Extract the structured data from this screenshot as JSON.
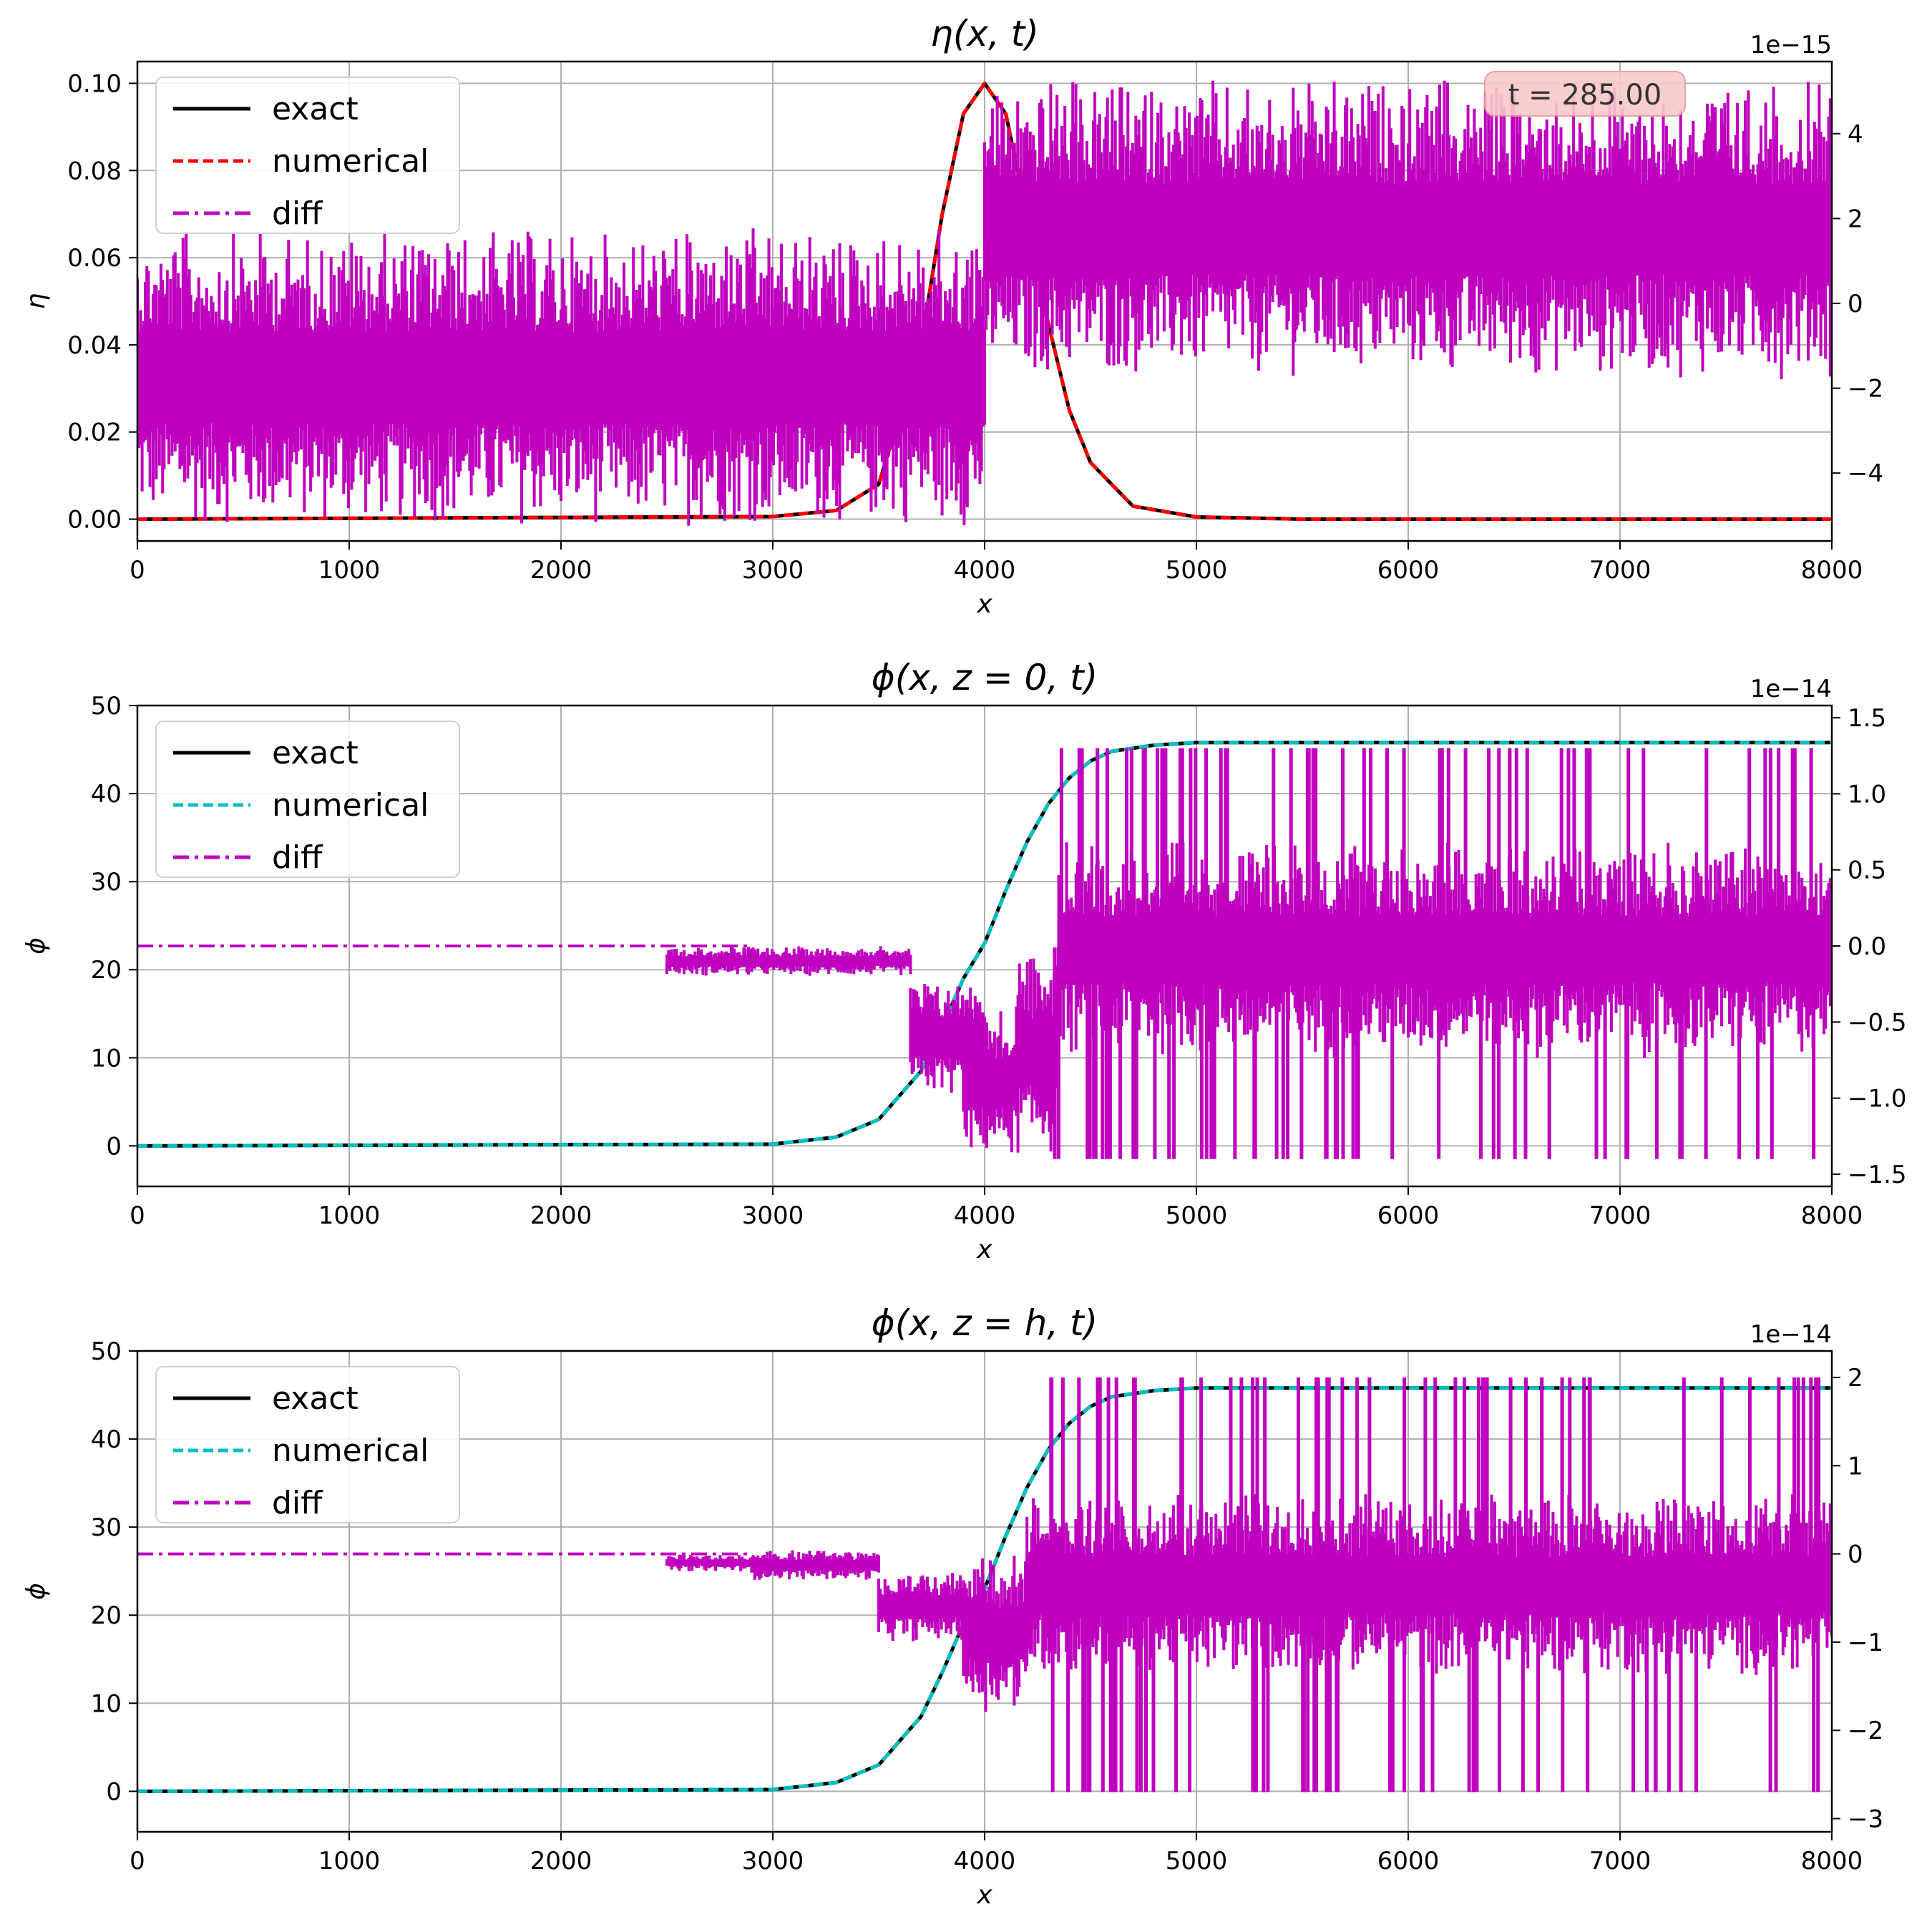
{
  "chart_data": [
    {
      "type": "line",
      "title": "η(x, t)",
      "xlabel": "x",
      "ylabel": "η",
      "xlim": [
        0,
        8000
      ],
      "ylim": [
        -0.005,
        0.105
      ],
      "xticks": [
        0,
        1000,
        2000,
        3000,
        4000,
        5000,
        6000,
        7000,
        8000
      ],
      "yticks": [
        0.0,
        0.02,
        0.04,
        0.06,
        0.08,
        0.1
      ],
      "ytick_labels": [
        "0.00",
        "0.02",
        "0.04",
        "0.06",
        "0.08",
        "0.10"
      ],
      "y2lim": [
        -5.6,
        5.7
      ],
      "y2ticks": [
        -4,
        -2,
        0,
        2,
        4
      ],
      "y2tick_labels": [
        "−4",
        "−2",
        "0",
        "2",
        "4"
      ],
      "y2_offset_label": "1e−15",
      "grid": true,
      "legend_position": "upper-left",
      "annotation": "t = 285.00",
      "series": [
        {
          "name": "exact",
          "style": "solid",
          "color": "#000000",
          "axis": "left",
          "x": [
            0,
            3000,
            3300,
            3500,
            3700,
            3800,
            3900,
            4000,
            4100,
            4200,
            4300,
            4400,
            4500,
            4700,
            5000,
            5500,
            8000
          ],
          "y": [
            0.0,
            0.0006,
            0.002,
            0.008,
            0.04,
            0.07,
            0.093,
            0.1,
            0.093,
            0.07,
            0.045,
            0.025,
            0.013,
            0.003,
            0.0005,
            0.0,
            0.0
          ]
        },
        {
          "name": "numerical",
          "style": "dashed",
          "color": "#ff0000",
          "axis": "left",
          "x": [
            0,
            3000,
            3300,
            3500,
            3700,
            3800,
            3900,
            4000,
            4100,
            4200,
            4300,
            4400,
            4500,
            4700,
            5000,
            5500,
            8000
          ],
          "y": [
            0.0,
            0.0006,
            0.002,
            0.008,
            0.04,
            0.07,
            0.093,
            0.1,
            0.093,
            0.07,
            0.045,
            0.025,
            0.013,
            0.003,
            0.0005,
            0.0,
            0.0
          ]
        },
        {
          "name": "diff",
          "style": "dashdot",
          "color": "#bf00bf",
          "axis": "right",
          "bands": [
            {
              "x": [
                0,
                4000
              ],
              "y": [
                -5.3,
                1.8
              ]
            },
            {
              "x": [
                4000,
                8000
              ],
              "y": [
                -1.8,
                5.3
              ]
            }
          ]
        }
      ]
    },
    {
      "type": "line",
      "title": "ϕ(x, z = 0, t)",
      "xlabel": "x",
      "ylabel": "ϕ",
      "xlim": [
        0,
        8000
      ],
      "ylim": [
        -4.6,
        50.0
      ],
      "xticks": [
        0,
        1000,
        2000,
        3000,
        4000,
        5000,
        6000,
        7000,
        8000
      ],
      "yticks": [
        0,
        10,
        20,
        30,
        40,
        50
      ],
      "ytick_labels": [
        "0",
        "10",
        "20",
        "30",
        "40",
        "50"
      ],
      "y2lim": [
        -1.58,
        1.58
      ],
      "y2ticks": [
        -1.5,
        -1.0,
        -0.5,
        0.0,
        0.5,
        1.0,
        1.5
      ],
      "y2tick_labels": [
        "−1.5",
        "−1.0",
        "−0.5",
        "0.0",
        "0.5",
        "1.0",
        "1.5"
      ],
      "y2_offset_label": "1e−14",
      "grid": true,
      "legend_position": "upper-left",
      "series": [
        {
          "name": "exact",
          "style": "solid",
          "color": "#000000",
          "axis": "left",
          "x": [
            0,
            3000,
            3300,
            3500,
            3700,
            3800,
            3900,
            4000,
            4100,
            4200,
            4300,
            4400,
            4500,
            4600,
            4800,
            5000,
            8000
          ],
          "y": [
            0.0,
            0.2,
            1.0,
            3.0,
            8.5,
            13.5,
            19.0,
            23.0,
            29.0,
            34.5,
            38.8,
            41.8,
            43.7,
            44.8,
            45.5,
            45.8,
            45.8
          ]
        },
        {
          "name": "numerical",
          "style": "dashed",
          "color": "#00bfbf",
          "axis": "left",
          "x": [
            0,
            3000,
            3300,
            3500,
            3700,
            3800,
            3900,
            4000,
            4100,
            4200,
            4300,
            4400,
            4500,
            4600,
            4800,
            5000,
            8000
          ],
          "y": [
            0.0,
            0.2,
            1.0,
            3.0,
            8.5,
            13.5,
            19.0,
            23.0,
            29.0,
            34.5,
            38.8,
            41.8,
            43.7,
            44.8,
            45.5,
            45.8,
            45.8
          ]
        },
        {
          "name": "diff",
          "style": "dashdot",
          "color": "#bf00bf",
          "axis": "right",
          "baseline": {
            "x": [
              0,
              2900
            ],
            "y": 0.0
          },
          "steps": [
            {
              "x": [
                2500,
                2900
              ],
              "y": [
                -0.2,
                0.0
              ]
            },
            {
              "x": [
                2900,
                3650
              ],
              "y": [
                -0.2,
                0.0
              ]
            },
            {
              "x": [
                3650,
                4000
              ],
              "y": [
                -1.0,
                -0.2
              ]
            },
            {
              "x": [
                3900,
                4150
              ],
              "y": [
                -1.4,
                -0.4
              ]
            },
            {
              "x": [
                4150,
                4350
              ],
              "y": [
                -1.4,
                0.0
              ]
            },
            {
              "x": [
                4350,
                8000
              ],
              "y": [
                -0.75,
                0.7
              ]
            }
          ],
          "spikes": {
            "x_range": [
              4300,
              8000
            ],
            "low": -1.4,
            "high": 1.3
          }
        }
      ]
    },
    {
      "type": "line",
      "title": "ϕ(x, z = h, t)",
      "xlabel": "x",
      "ylabel": "ϕ",
      "xlim": [
        0,
        8000
      ],
      "ylim": [
        -4.6,
        50.0
      ],
      "xticks": [
        0,
        1000,
        2000,
        3000,
        4000,
        5000,
        6000,
        7000,
        8000
      ],
      "yticks": [
        0,
        10,
        20,
        30,
        40,
        50
      ],
      "ytick_labels": [
        "0",
        "10",
        "20",
        "30",
        "40",
        "50"
      ],
      "y2lim": [
        -3.15,
        2.3
      ],
      "y2ticks": [
        -3,
        -2,
        -1,
        0,
        1,
        2
      ],
      "y2tick_labels": [
        "−3",
        "−2",
        "−1",
        "0",
        "1",
        "2"
      ],
      "y2_offset_label": "1e−14",
      "grid": true,
      "legend_position": "upper-left",
      "series": [
        {
          "name": "exact",
          "style": "solid",
          "color": "#000000",
          "axis": "left",
          "x": [
            0,
            3000,
            3300,
            3500,
            3700,
            3800,
            3900,
            4000,
            4100,
            4200,
            4300,
            4400,
            4500,
            4600,
            4800,
            5000,
            8000
          ],
          "y": [
            0.0,
            0.2,
            1.0,
            3.0,
            8.5,
            13.5,
            19.0,
            23.0,
            29.0,
            34.5,
            38.8,
            41.8,
            43.7,
            44.8,
            45.5,
            45.8,
            45.8
          ]
        },
        {
          "name": "numerical",
          "style": "dashed",
          "color": "#00bfbf",
          "axis": "left",
          "x": [
            0,
            3000,
            3300,
            3500,
            3700,
            3800,
            3900,
            4000,
            4100,
            4200,
            4300,
            4400,
            4500,
            4600,
            4800,
            5000,
            8000
          ],
          "y": [
            0.0,
            0.2,
            1.0,
            3.0,
            8.5,
            13.5,
            19.0,
            23.0,
            29.0,
            34.5,
            38.8,
            41.8,
            43.7,
            44.8,
            45.5,
            45.8,
            45.8
          ]
        },
        {
          "name": "diff",
          "style": "dashdot",
          "color": "#bf00bf",
          "axis": "right",
          "baseline": {
            "x": [
              0,
              2900
            ],
            "y": 0.0
          },
          "steps": [
            {
              "x": [
                2500,
                2900
              ],
              "y": [
                -0.2,
                0.0
              ]
            },
            {
              "x": [
                2900,
                3500
              ],
              "y": [
                -0.3,
                0.05
              ]
            },
            {
              "x": [
                3500,
                3900
              ],
              "y": [
                -1.0,
                -0.2
              ]
            },
            {
              "x": [
                3900,
                4200
              ],
              "y": [
                -1.8,
                0.0
              ]
            },
            {
              "x": [
                4200,
                8000
              ],
              "y": [
                -1.4,
                0.7
              ]
            }
          ],
          "spikes": {
            "x_range": [
              4300,
              8000
            ],
            "low": -2.7,
            "high": 2.0
          }
        }
      ]
    }
  ]
}
